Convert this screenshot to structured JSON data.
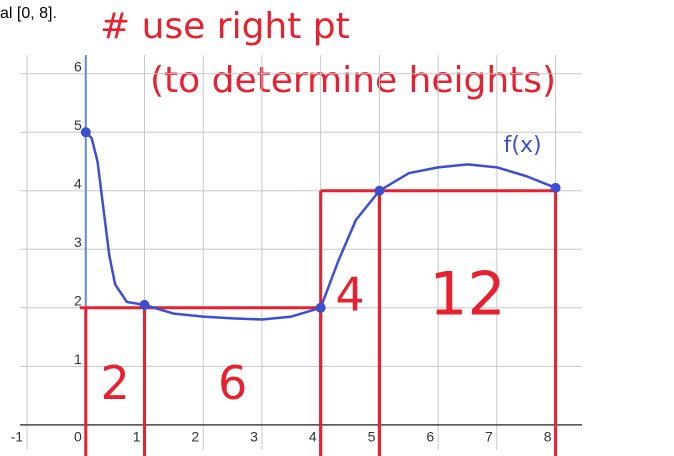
{
  "chart_data": {
    "type": "line",
    "caption": "al [0, 8].",
    "annotations": [
      "# use right pt",
      "(to determine heights)"
    ],
    "xlim": [
      -1.12,
      8.45
    ],
    "ylim": [
      -0.43,
      6.32
    ],
    "xticks": [
      -1,
      0,
      1,
      2,
      3,
      4,
      5,
      6,
      7,
      8
    ],
    "yticks": [
      1,
      2,
      3,
      4,
      5,
      6
    ],
    "grid": true,
    "series": [
      {
        "name": "f(x)",
        "color": "#3b4fd0",
        "x": [
          0,
          0.1,
          0.2,
          0.3,
          0.4,
          0.5,
          0.7,
          1,
          1.5,
          2,
          2.5,
          3,
          3.5,
          4,
          4.3,
          4.6,
          5,
          5.5,
          6,
          6.5,
          7,
          7.5,
          8
        ],
        "values": [
          5,
          4.9,
          4.5,
          3.7,
          2.9,
          2.4,
          2.1,
          2.05,
          1.9,
          1.85,
          1.82,
          1.8,
          1.85,
          2,
          2.8,
          3.5,
          4,
          4.3,
          4.4,
          4.45,
          4.4,
          4.25,
          4.05
        ]
      }
    ],
    "rectangles": {
      "color": "#e8202f",
      "partition": [
        0,
        1,
        4,
        5,
        8
      ],
      "heights": [
        2,
        2,
        4,
        4
      ],
      "areas": [
        2,
        6,
        4,
        12
      ]
    }
  }
}
